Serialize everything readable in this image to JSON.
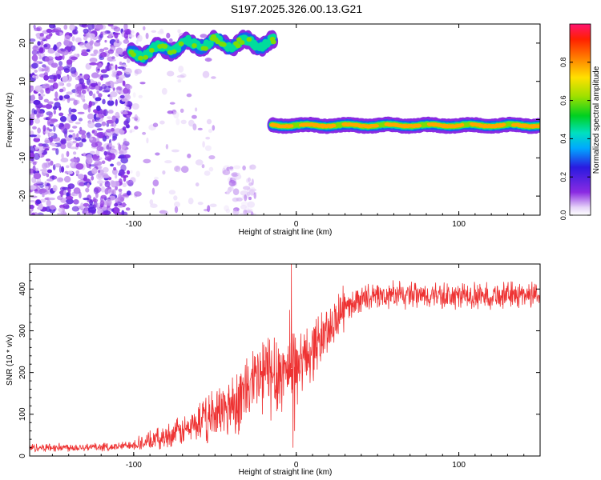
{
  "figure_title": "S197.2025.326.00.13.G21",
  "chart_data": [
    {
      "type": "heatmap",
      "xlabel": "Height of straight line (km)",
      "ylabel": "Frequency (Hz)",
      "xlim": [
        -164,
        150
      ],
      "ylim": [
        -25,
        25
      ],
      "x_ticks": [
        -100,
        0,
        100
      ],
      "y_ticks": [
        20,
        10,
        0,
        -10,
        -20
      ],
      "x_tick_labels": [
        "-100",
        "0",
        "100"
      ],
      "y_tick_labels": [
        "20",
        "10",
        "0",
        "-10",
        "-20"
      ],
      "colorbar": {
        "label": "Normalized spectral amplitude",
        "range": [
          0,
          1
        ],
        "ticks": [
          0.0,
          0.2,
          0.4,
          0.6,
          0.8
        ],
        "tick_labels": [
          "0.0",
          "0.2",
          "0.4",
          "0.6",
          "0.8"
        ]
      },
      "ridge_segments": [
        {
          "x_start": -102,
          "x_end": -14,
          "freq": 20,
          "strength": 0.55
        },
        {
          "x_start": -15,
          "x_end": 150,
          "freq": -1.5,
          "strength": 0.85
        }
      ],
      "noise_regions": [
        {
          "x_start": -164,
          "x_end": -102,
          "freq_start": -25,
          "freq_end": 25,
          "density": "high"
        },
        {
          "x_start": -102,
          "x_end": -50,
          "freq_start": -25,
          "freq_end": 25,
          "density": "low"
        },
        {
          "x_start": -45,
          "x_end": -25,
          "freq_start": -25,
          "freq_end": -12,
          "density": "medium"
        }
      ]
    },
    {
      "type": "line",
      "xlabel": "Height of straight line (km)",
      "ylabel": "SNR (10 * v/v)",
      "xlim": [
        -164,
        150
      ],
      "ylim": [
        0,
        460
      ],
      "x_ticks": [
        -100,
        0,
        100
      ],
      "y_ticks": [
        0,
        100,
        200,
        300,
        400
      ],
      "x_tick_labels": [
        "-100",
        "0",
        "100"
      ],
      "y_tick_labels": [
        "0",
        "100",
        "200",
        "300",
        "400"
      ],
      "color": "#ee3333",
      "trend": [
        {
          "x": -164,
          "y": 20
        },
        {
          "x": -110,
          "y": 22
        },
        {
          "x": -90,
          "y": 35
        },
        {
          "x": -70,
          "y": 60
        },
        {
          "x": -50,
          "y": 95
        },
        {
          "x": -35,
          "y": 140
        },
        {
          "x": -20,
          "y": 195
        },
        {
          "x": -10,
          "y": 200
        },
        {
          "x": 0,
          "y": 215
        },
        {
          "x": 10,
          "y": 255
        },
        {
          "x": 20,
          "y": 305
        },
        {
          "x": 30,
          "y": 355
        },
        {
          "x": 40,
          "y": 378
        },
        {
          "x": 60,
          "y": 385
        },
        {
          "x": 100,
          "y": 382
        },
        {
          "x": 150,
          "y": 388
        }
      ],
      "spikes": [
        {
          "x": -3,
          "y": 460
        },
        {
          "x": -4,
          "y": 350
        },
        {
          "x": -2,
          "y": 20
        },
        {
          "x": -1,
          "y": 60
        }
      ]
    }
  ]
}
